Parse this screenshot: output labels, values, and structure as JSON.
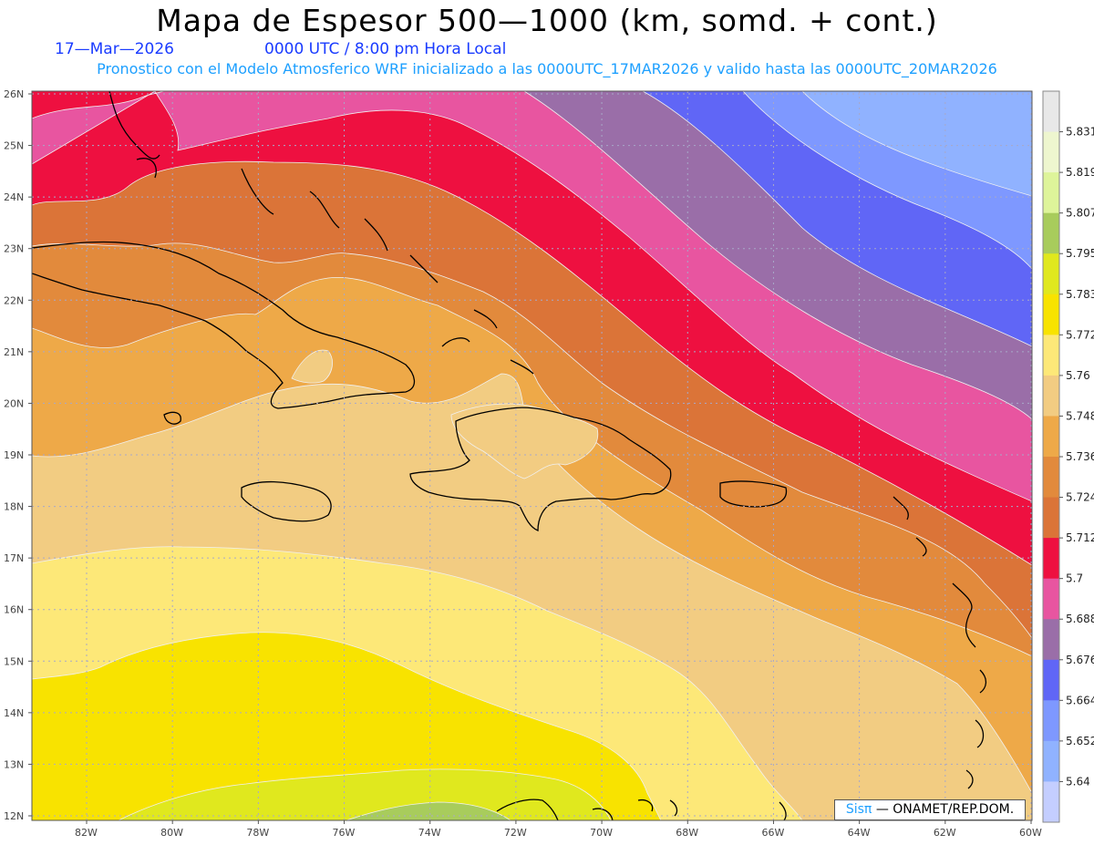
{
  "header": {
    "title": "Mapa de Espesor 500—1000 (km, somd. + cont.)",
    "date": "17—Mar—2026",
    "time": "0000 UTC / 8:00 pm Hora Local",
    "subtitle": "Pronostico con el Modelo Atmosferico WRF inicializado a las 0000UTC_17MAR2026 y valido hasta las  0000UTC_20MAR2026"
  },
  "map": {
    "lat_labels": [
      "26N",
      "25N",
      "24N",
      "23N",
      "22N",
      "21N",
      "20N",
      "19N",
      "18N",
      "17N",
      "16N",
      "15N",
      "14N",
      "13N",
      "12N"
    ],
    "lon_labels": [
      "82W",
      "80W",
      "78W",
      "76W",
      "74W",
      "72W",
      "70W",
      "68W",
      "66W",
      "64W",
      "62W",
      "60W"
    ],
    "credit_sis": "Sisπ",
    "credit_org": "— ONAMET/REP.DOM."
  },
  "colorbar": {
    "labels": [
      "5.831",
      "5.819",
      "5.807",
      "5.795",
      "5.783",
      "5.772",
      "5.76",
      "5.748",
      "5.736",
      "5.724",
      "5.712",
      "5.7",
      "5.688",
      "5.676",
      "5.664",
      "5.652",
      "5.64"
    ],
    "colors_top_to_bottom": [
      "#e8e8e8",
      "#eef6cf",
      "#def49a",
      "#a8cc5c",
      "#e0e81e",
      "#f8e300",
      "#fde878",
      "#f2cc82",
      "#eea948",
      "#e28a3c",
      "#db7438",
      "#ee1040",
      "#e855a0",
      "#9a6ea8",
      "#6066f6",
      "#7e98ff",
      "#90b2ff",
      "#c4ceff"
    ]
  }
}
